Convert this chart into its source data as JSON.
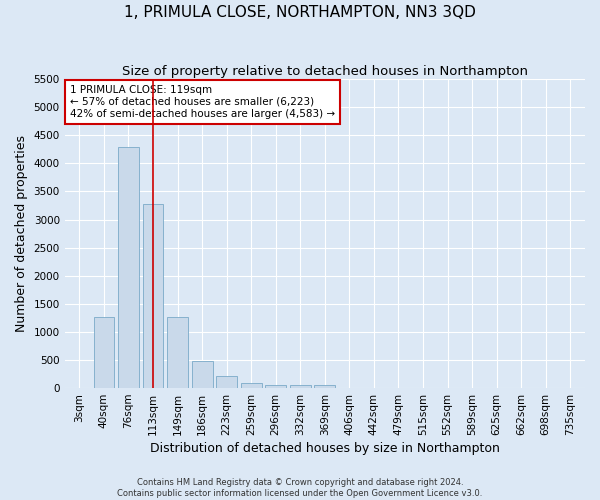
{
  "title": "1, PRIMULA CLOSE, NORTHAMPTON, NN3 3QD",
  "subtitle": "Size of property relative to detached houses in Northampton",
  "xlabel": "Distribution of detached houses by size in Northampton",
  "ylabel": "Number of detached properties",
  "footer_line1": "Contains HM Land Registry data © Crown copyright and database right 2024.",
  "footer_line2": "Contains public sector information licensed under the Open Government Licence v3.0.",
  "categories": [
    "3sqm",
    "40sqm",
    "76sqm",
    "113sqm",
    "149sqm",
    "186sqm",
    "223sqm",
    "259sqm",
    "296sqm",
    "332sqm",
    "369sqm",
    "406sqm",
    "442sqm",
    "479sqm",
    "515sqm",
    "552sqm",
    "589sqm",
    "625sqm",
    "662sqm",
    "698sqm",
    "735sqm"
  ],
  "values": [
    0,
    1270,
    4300,
    3270,
    1270,
    490,
    220,
    90,
    60,
    55,
    60,
    0,
    0,
    0,
    0,
    0,
    0,
    0,
    0,
    0,
    0
  ],
  "bar_color": "#c9d9ea",
  "bar_edge_color": "#7aaac8",
  "annotation_text": "1 PRIMULA CLOSE: 119sqm\n← 57% of detached houses are smaller (6,223)\n42% of semi-detached houses are larger (4,583) →",
  "annotation_box_color": "white",
  "annotation_box_edge_color": "#cc0000",
  "red_line_color": "#cc0000",
  "red_line_x": 3.0,
  "ylim": [
    0,
    5500
  ],
  "yticks": [
    0,
    500,
    1000,
    1500,
    2000,
    2500,
    3000,
    3500,
    4000,
    4500,
    5000,
    5500
  ],
  "background_color": "#dce8f5",
  "axes_facecolor": "#dce8f5",
  "grid_color": "white",
  "title_fontsize": 11,
  "subtitle_fontsize": 9.5,
  "xlabel_fontsize": 9,
  "ylabel_fontsize": 9,
  "tick_fontsize": 7.5,
  "annotation_fontsize": 7.5,
  "footer_fontsize": 6
}
